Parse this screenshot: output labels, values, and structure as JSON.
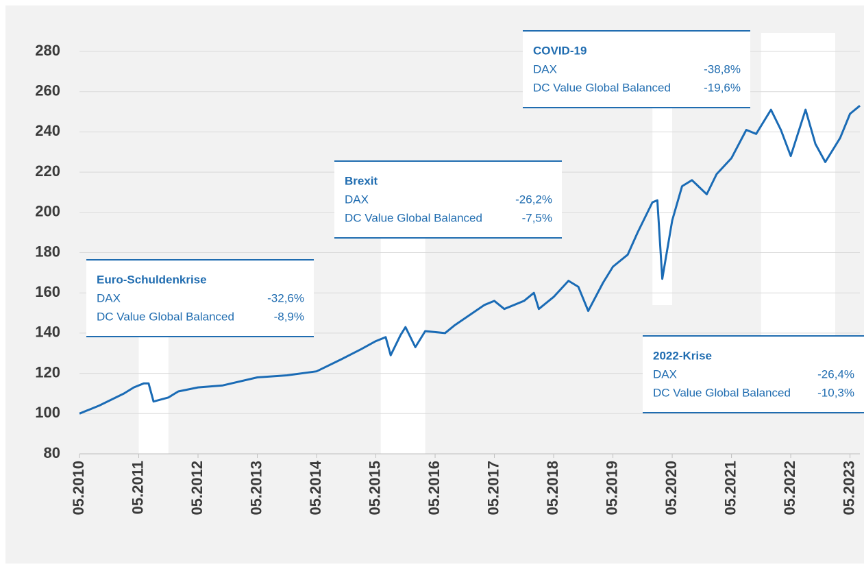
{
  "chart_data": {
    "type": "line",
    "x": [
      "05.2010",
      "09.2010",
      "02.2011",
      "04.2011",
      "06.2011",
      "07.2011",
      "08.2011",
      "11.2011",
      "01.2012",
      "05.2012",
      "10.2012",
      "05.2013",
      "11.2013",
      "05.2014",
      "10.2014",
      "02.2015",
      "05.2015",
      "07.2015",
      "08.2015",
      "10.2015",
      "11.2015",
      "01.2016",
      "03.2016",
      "07.2016",
      "09.2016",
      "12.2016",
      "03.2017",
      "05.2017",
      "07.2017",
      "11.2017",
      "01.2018",
      "02.2018",
      "05.2018",
      "08.2018",
      "10.2018",
      "12.2018",
      "03.2019",
      "05.2019",
      "08.2019",
      "10.2019",
      "01.2020",
      "02.2020",
      "03.2020",
      "05.2020",
      "07.2020",
      "09.2020",
      "12.2020",
      "02.2021",
      "05.2021",
      "08.2021",
      "10.2021",
      "01.2022",
      "03.2022",
      "05.2022",
      "08.2022",
      "10.2022",
      "12.2022",
      "03.2023",
      "05.2023",
      "07.2023"
    ],
    "series": [
      {
        "name": "DC Value Global Balanced",
        "color": "#1a6bb5",
        "values": [
          100,
          104,
          110,
          113,
          115,
          115,
          106,
          108,
          111,
          113,
          114,
          118,
          119,
          121,
          127,
          132,
          136,
          138,
          129,
          139,
          143,
          133,
          141,
          140,
          144,
          149,
          154,
          156,
          152,
          156,
          160,
          152,
          158,
          166,
          163,
          151,
          165,
          173,
          179,
          190,
          205,
          206,
          167,
          196,
          213,
          216,
          209,
          219,
          227,
          241,
          239,
          251,
          241,
          228,
          251,
          234,
          225,
          237,
          249,
          253
        ]
      }
    ],
    "xlim": [
      "05.2010",
      "07.2023"
    ],
    "xticks": [
      "05.2010",
      "05.2011",
      "05.2012",
      "05.2013",
      "05.2014",
      "05.2015",
      "05.2016",
      "05.2017",
      "05.2018",
      "05.2019",
      "05.2020",
      "05.2021",
      "05.2022",
      "05.2023"
    ],
    "ylim": [
      80,
      280
    ],
    "yticks": [
      80,
      100,
      120,
      140,
      160,
      180,
      200,
      220,
      240,
      260,
      280
    ],
    "grid": true,
    "bands": [
      {
        "start": "05.2011",
        "end": "11.2011"
      },
      {
        "start": "06.2015",
        "end": "03.2016"
      },
      {
        "start": "01.2020",
        "end": "05.2020"
      },
      {
        "start": "11.2021",
        "end": "02.2023"
      }
    ],
    "annotations": [
      {
        "title": "Euro-Schuldenkrise",
        "rows": [
          {
            "label": "DAX",
            "value": "-32,6%"
          },
          {
            "label": "DC Value Global Balanced",
            "value": "-8,9%"
          }
        ]
      },
      {
        "title": "Brexit",
        "rows": [
          {
            "label": "DAX",
            "value": "-26,2%"
          },
          {
            "label": "DC Value Global Balanced",
            "value": "-7,5%"
          }
        ]
      },
      {
        "title": "COVID-19",
        "rows": [
          {
            "label": "DAX",
            "value": "-38,8%"
          },
          {
            "label": "DC Value Global Balanced",
            "value": "-19,6%"
          }
        ]
      },
      {
        "title": "2022-Krise",
        "rows": [
          {
            "label": "DAX",
            "value": "-26,4%"
          },
          {
            "label": "DC Value Global Balanced",
            "value": "-10,3%"
          }
        ]
      }
    ]
  }
}
